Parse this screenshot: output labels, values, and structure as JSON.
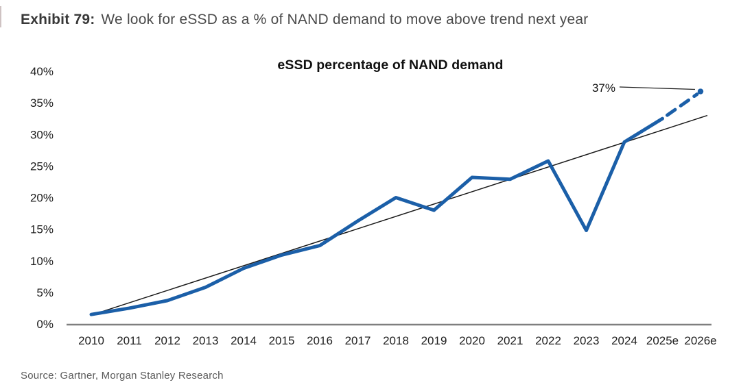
{
  "header": {
    "exhibit_label": "Exhibit 79:",
    "exhibit_title": "We look for eSSD as a % of NAND demand to move above trend next year"
  },
  "footer": {
    "source": "Source: Gartner, Morgan Stanley Research"
  },
  "chart_data": {
    "type": "line",
    "title": "eSSD percentage of NAND demand",
    "categories": [
      "2010",
      "2011",
      "2012",
      "2013",
      "2014",
      "2015",
      "2016",
      "2017",
      "2018",
      "2019",
      "2020",
      "2021",
      "2022",
      "2023",
      "2024",
      "2025e",
      "2026e"
    ],
    "series": [
      {
        "name": "eSSD percentage of NAND demand",
        "color": "#1b5fa8",
        "style": "solid, dashed for forecast segment",
        "values": [
          1.5,
          2.5,
          3.7,
          5.8,
          8.8,
          10.9,
          12.4,
          16.3,
          20.0,
          18.0,
          23.2,
          22.9,
          25.8,
          14.8,
          28.8,
          32.5,
          36.8
        ]
      },
      {
        "name": "linear trend",
        "color": "#1a1a1a",
        "style": "thin straight line",
        "trend_start": 1.4,
        "trend_end": 33.0
      }
    ],
    "forecast_from_index": 15,
    "annotation": {
      "label": "37%",
      "target_category": "2026e",
      "target_value": 37
    },
    "xlabel": "",
    "ylabel": "",
    "ylim": [
      0,
      40
    ],
    "ytick_step": 5,
    "ytick_suffix": "%",
    "axis_color": "#7f7f7f",
    "grid": false,
    "legend": "none"
  }
}
